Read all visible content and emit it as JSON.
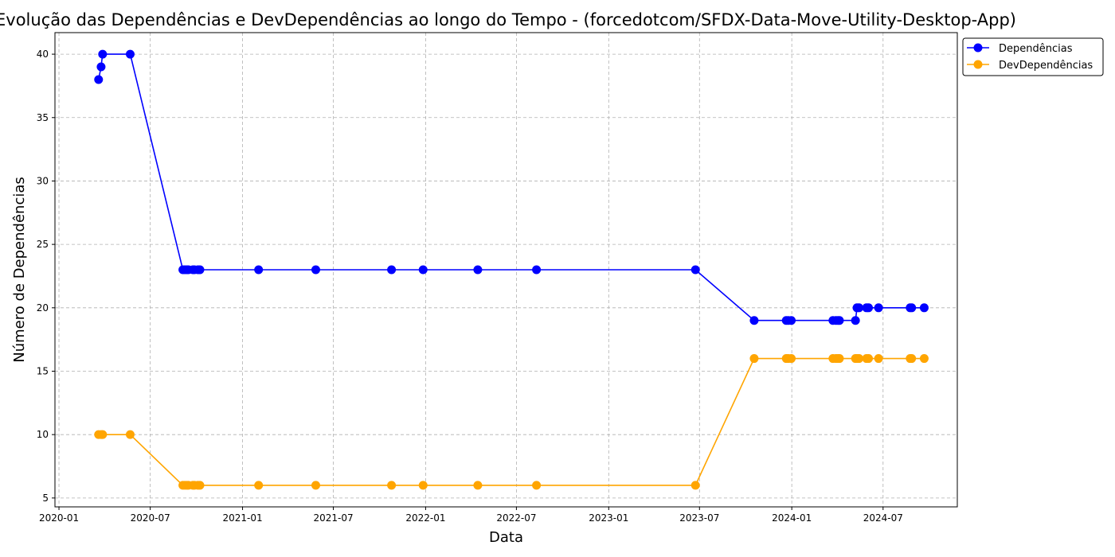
{
  "chart_data": {
    "type": "line",
    "title": "Evolução das Dependências e DevDependências ao longo do Tempo - (forcedotcom/SFDX-Data-Move-Utility-Desktop-App)",
    "xlabel": "Data",
    "ylabel": "Número de Dependências",
    "x_tick_labels": [
      "2020-01",
      "2020-07",
      "2021-01",
      "2021-07",
      "2022-01",
      "2022-07",
      "2023-01",
      "2023-07",
      "2024-01",
      "2024-07"
    ],
    "y_ticks": [
      5,
      10,
      15,
      20,
      25,
      30,
      35,
      40
    ],
    "xlim": [
      "2019-12-24",
      "2024-11-26"
    ],
    "ylim": [
      4.3,
      41.7
    ],
    "grid": true,
    "legend_position": "top-right-outside",
    "x": [
      "2020-03-20",
      "2020-03-25",
      "2020-03-28",
      "2020-05-22",
      "2020-09-04",
      "2020-09-08",
      "2020-09-12",
      "2020-09-15",
      "2020-09-24",
      "2020-09-27",
      "2020-10-04",
      "2020-10-08",
      "2021-02-02",
      "2021-05-27",
      "2021-10-25",
      "2021-12-27",
      "2022-04-15",
      "2022-08-10",
      "2023-06-23",
      "2023-10-18",
      "2023-12-21",
      "2023-12-25",
      "2023-12-31",
      "2024-03-23",
      "2024-03-29",
      "2024-04-02",
      "2024-04-05",
      "2024-05-07",
      "2024-05-10",
      "2024-05-14",
      "2024-05-29",
      "2024-06-02",
      "2024-06-22",
      "2024-08-24",
      "2024-08-27",
      "2024-09-21"
    ],
    "series": [
      {
        "name": "Dependências",
        "color": "#0000ff",
        "values": [
          38,
          39,
          40,
          40,
          23,
          23,
          23,
          23,
          23,
          23,
          23,
          23,
          23,
          23,
          23,
          23,
          23,
          23,
          23,
          19,
          19,
          19,
          19,
          19,
          19,
          19,
          19,
          19,
          20,
          20,
          20,
          20,
          20,
          20,
          20,
          20
        ]
      },
      {
        "name": "DevDependências",
        "color": "#ffa500",
        "values": [
          10,
          10,
          10,
          10,
          6,
          6,
          6,
          6,
          6,
          6,
          6,
          6,
          6,
          6,
          6,
          6,
          6,
          6,
          6,
          16,
          16,
          16,
          16,
          16,
          16,
          16,
          16,
          16,
          16,
          16,
          16,
          16,
          16,
          16,
          16,
          16
        ]
      }
    ]
  }
}
